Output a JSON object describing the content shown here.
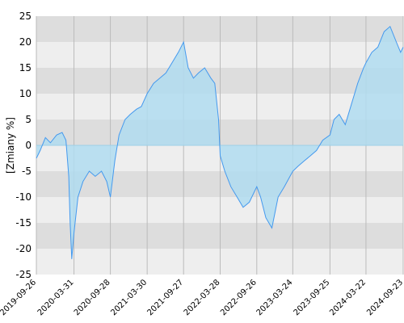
{
  "chart_data": {
    "type": "area",
    "ylabel": "[Zmiany %]",
    "ylim": [
      -25,
      25
    ],
    "y_ticks": [
      25,
      20,
      15,
      10,
      5,
      0,
      -5,
      -10,
      -15,
      -20,
      -25
    ],
    "x_tick_labels": [
      "2019-09-26",
      "2020-03-31",
      "2020-09-28",
      "2021-03-30",
      "2021-09-27",
      "2022-03-28",
      "2022-09-26",
      "2023-03-24",
      "2023-09-25",
      "2024-03-22",
      "2024-09-23"
    ],
    "grid": true,
    "legend": "none",
    "colors": {
      "line": "#4499ee",
      "fill": "#b0dcf0",
      "band_dark": "#dddddd",
      "band_light": "#eeeeee",
      "vgrid": "#bbbbbb",
      "zero": "#9dcfe6"
    },
    "series": [
      {
        "x": [
          "2019-09-26",
          "2019-10-15",
          "2019-11-10",
          "2019-12-05",
          "2020-01-05",
          "2020-02-01",
          "2020-02-20",
          "2020-03-05",
          "2020-03-12",
          "2020-03-20",
          "2020-03-31",
          "2020-04-20",
          "2020-05-15",
          "2020-06-15",
          "2020-07-15",
          "2020-08-15",
          "2020-09-10",
          "2020-09-28",
          "2020-10-20",
          "2020-11-10",
          "2020-12-10",
          "2021-01-05",
          "2021-02-05",
          "2021-03-01",
          "2021-03-30",
          "2021-05-01",
          "2021-06-01",
          "2021-07-01",
          "2021-08-01",
          "2021-09-01",
          "2021-09-27",
          "2021-10-20",
          "2021-11-15",
          "2021-12-10",
          "2022-01-10",
          "2022-02-10",
          "2022-03-01",
          "2022-03-20",
          "2022-03-28",
          "2022-04-20",
          "2022-05-20",
          "2022-06-20",
          "2022-07-20",
          "2022-08-20",
          "2022-09-26",
          "2022-10-15",
          "2022-11-10",
          "2022-12-10",
          "2023-01-10",
          "2023-02-10",
          "2023-03-10",
          "2023-03-24",
          "2023-04-20",
          "2023-05-20",
          "2023-06-20",
          "2023-07-20",
          "2023-08-20",
          "2023-09-25",
          "2023-10-15",
          "2023-11-10",
          "2023-12-10",
          "2024-01-10",
          "2024-02-10",
          "2024-03-10",
          "2024-03-22",
          "2024-04-20",
          "2024-05-20",
          "2024-06-20",
          "2024-07-20",
          "2024-08-20",
          "2024-09-10",
          "2024-09-23"
        ],
        "values": [
          -2.5,
          -1,
          1.5,
          0.5,
          2,
          2.5,
          1,
          -6,
          -15,
          -22,
          -17,
          -10,
          -7,
          -5,
          -6,
          -5,
          -7,
          -10,
          -3,
          2,
          5,
          6,
          7,
          7.5,
          10,
          12,
          13,
          14,
          16,
          18,
          20,
          15,
          13,
          14,
          15,
          13,
          12,
          5,
          -2,
          -5,
          -8,
          -10,
          -12,
          -11,
          -8,
          -10,
          -14,
          -16,
          -10,
          -8,
          -6,
          -5,
          -4,
          -3,
          -2,
          -1,
          1,
          2,
          5,
          6,
          4,
          8,
          12,
          15,
          16,
          18,
          19,
          22,
          23,
          20,
          18,
          19
        ]
      }
    ]
  }
}
